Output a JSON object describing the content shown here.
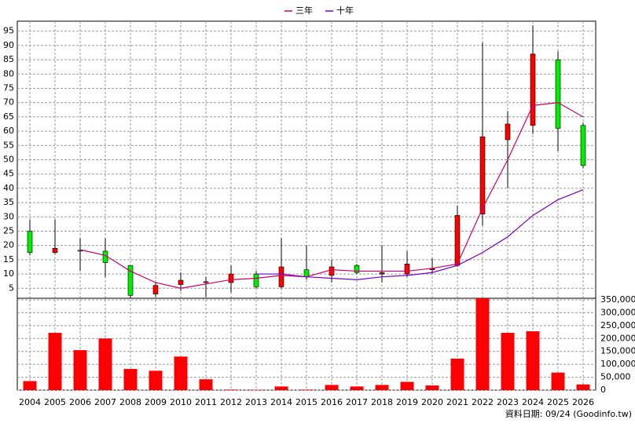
{
  "chart_data": [
    {
      "type": "candlestick",
      "categories": [
        "2004",
        "2005",
        "2006",
        "2007",
        "2008",
        "2009",
        "2010",
        "2011",
        "2012",
        "2013",
        "2014",
        "2015",
        "2016",
        "2017",
        "2018",
        "2019",
        "2020",
        "2021",
        "2022",
        "2023",
        "2024",
        "2025",
        "2026"
      ],
      "open": [
        25,
        17.5,
        18.3,
        18,
        13,
        3,
        6.3,
        7,
        7,
        10,
        5.5,
        11.5,
        9.5,
        13,
        10,
        10,
        11.5,
        13,
        31,
        57,
        62,
        85,
        62
      ],
      "high": [
        29,
        29,
        22.5,
        22.5,
        13,
        7,
        10.5,
        9,
        13,
        11,
        22.5,
        20,
        15,
        13.5,
        20,
        18,
        15.5,
        34,
        91,
        67,
        97,
        88,
        63
      ],
      "low": [
        16.5,
        17,
        11,
        9,
        1.5,
        2,
        4,
        2,
        3.5,
        5,
        5,
        8,
        7,
        10,
        7,
        9,
        10,
        12.5,
        27,
        40,
        59,
        53,
        47
      ],
      "close": [
        17.5,
        19,
        18,
        14,
        2.5,
        6,
        7.8,
        7.3,
        10,
        5.5,
        12.5,
        9,
        12.5,
        10.5,
        10.5,
        13.5,
        12,
        30.5,
        58,
        62.5,
        87,
        61,
        48
      ],
      "up_color": "#ff0000",
      "down_color": "#00ee00",
      "series": [
        {
          "name": "三年",
          "color": "#cc0066",
          "values": [
            null,
            null,
            18.5,
            16.5,
            11,
            7,
            5,
            6.5,
            8,
            8.5,
            9.5,
            9,
            11.5,
            11,
            11,
            11,
            12,
            13.5,
            33,
            50,
            69,
            70,
            65
          ]
        },
        {
          "name": "十年",
          "color": "#7700cc",
          "values": [
            null,
            null,
            null,
            null,
            null,
            null,
            null,
            null,
            null,
            10,
            10,
            9,
            8.5,
            8,
            9,
            9.5,
            10.5,
            13,
            17.5,
            23,
            30.5,
            36,
            39.5
          ]
        }
      ],
      "ylim": [
        1.5,
        98.5
      ],
      "yticks": [
        5,
        10,
        15,
        20,
        25,
        30,
        35,
        40,
        45,
        50,
        55,
        60,
        65,
        70,
        75,
        80,
        85,
        90,
        95
      ],
      "grid": true
    },
    {
      "type": "bar",
      "color": "#ff0000",
      "values": [
        35000,
        222000,
        155000,
        200000,
        82000,
        75000,
        130000,
        42000,
        2000,
        1500,
        14000,
        2000,
        20000,
        14000,
        20000,
        32000,
        18000,
        122000,
        356000,
        222000,
        228000,
        68000,
        22000
      ],
      "ylim": [
        0,
        356000
      ],
      "y2ticks": [
        {
          "value": 0,
          "label": "0"
        },
        {
          "value": 50000,
          "label": "50,000"
        },
        {
          "value": 100000,
          "label": "100,000"
        },
        {
          "value": 150000,
          "label": "150,000"
        },
        {
          "value": 200000,
          "label": "200,000"
        },
        {
          "value": 250000,
          "label": "250,000"
        },
        {
          "value": 300000,
          "label": "300,000"
        },
        {
          "value": 350000,
          "label": "350,000"
        }
      ],
      "grid": true,
      "footnote": "資料日期: 09/24  (Goodinfo.tw)"
    }
  ]
}
